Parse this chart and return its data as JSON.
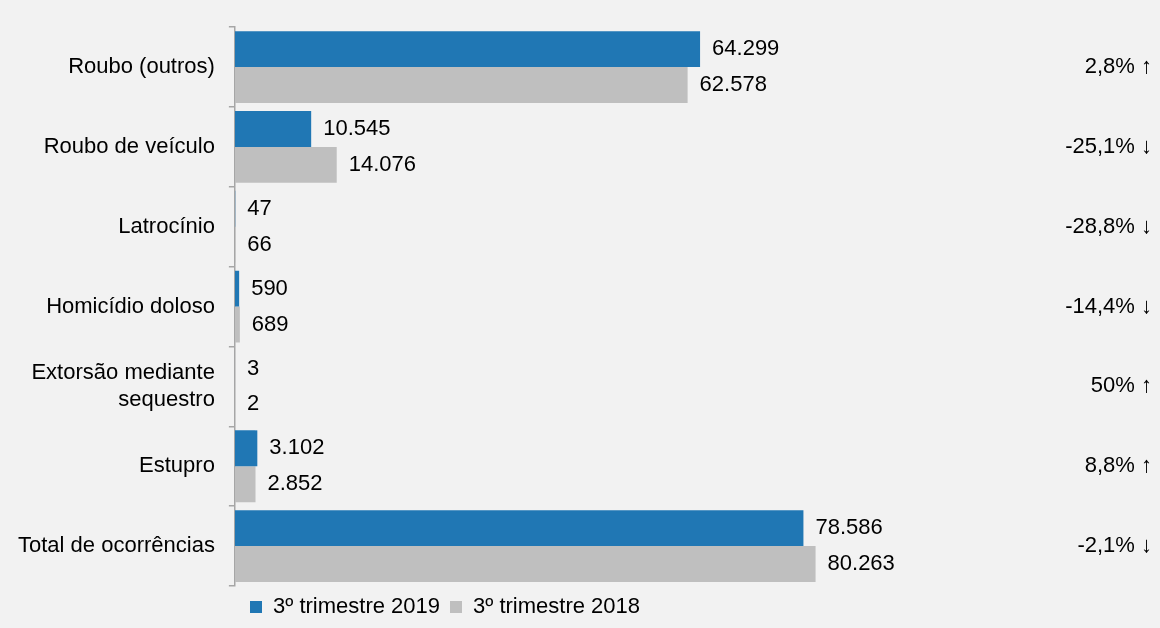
{
  "chart_data": {
    "type": "bar",
    "orientation": "horizontal",
    "categories": [
      "Roubo (outros)",
      "Roubo de veículo",
      "Latrocínio",
      "Homicídio doloso",
      "Extorsão mediante sequestro",
      "Estupro",
      "Total de ocorrências"
    ],
    "series": [
      {
        "name": "3º trimestre 2019",
        "color": "#2077b4",
        "values": [
          64299,
          10545,
          47,
          590,
          3,
          3102,
          78586
        ],
        "value_labels": [
          "64.299",
          "10.545",
          "47",
          "590",
          "3",
          "3.102",
          "78.586"
        ]
      },
      {
        "name": "3º trimestre 2018",
        "color": "#bfbfbf",
        "values": [
          62578,
          14076,
          66,
          689,
          2,
          2852,
          80263
        ],
        "value_labels": [
          "62.578",
          "14.076",
          "66",
          "689",
          "2",
          "2.852",
          "80.263"
        ]
      }
    ],
    "annotations": [
      "2,8% ↑",
      "-25,1% ↓",
      "-28,8% ↓",
      "-14,4% ↓",
      "50% ↑",
      "8,8% ↑",
      "-2,1% ↓"
    ],
    "legend": "bottom",
    "grid": false
  }
}
